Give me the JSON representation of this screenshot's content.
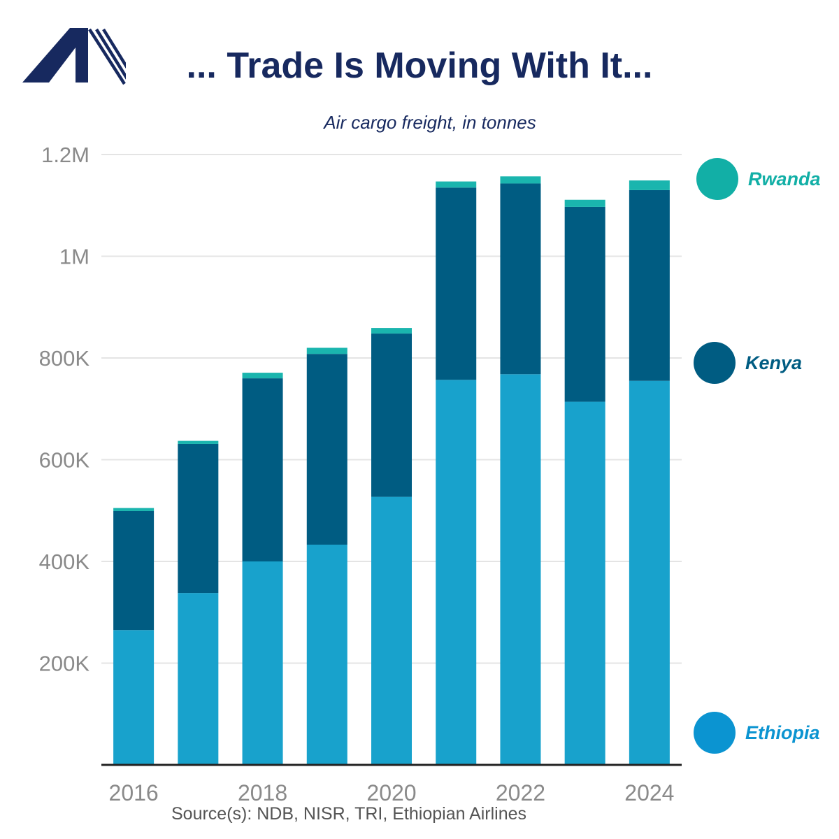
{
  "header": {
    "title": "... Trade Is Moving With It...",
    "subtitle": "Air cargo freight, in tonnes"
  },
  "colors": {
    "title": "#17295f",
    "logo": "#17295f",
    "ethiopia": "#18a2cc",
    "kenya": "#005c82",
    "rwanda": "#1ab5ae",
    "gridline": "#e4e4e4",
    "axis_text": "#8a8a8a"
  },
  "legend": [
    {
      "label": "Rwanda",
      "color": "#12afa6"
    },
    {
      "label": "Kenya",
      "color": "#005c82"
    },
    {
      "label": "Ethiopia",
      "color": "#0b94d1"
    }
  ],
  "source": "Source(s): NDB, NISR, TRI, Ethiopian Airlines",
  "chart_data": {
    "type": "bar",
    "stacked": true,
    "categories": [
      "2016",
      "2017",
      "2018",
      "2019",
      "2020",
      "2021",
      "2022",
      "2023",
      "2024"
    ],
    "x_tick_labels": [
      "2016",
      "",
      "2018",
      "",
      "2020",
      "",
      "2022",
      "",
      "2024"
    ],
    "y_tick_values": [
      200000,
      400000,
      600000,
      800000,
      1000000,
      1200000
    ],
    "y_tick_labels": [
      "200K",
      "400K",
      "600K",
      "800K",
      "1M",
      "1.2M"
    ],
    "ylim": [
      0,
      1200000
    ],
    "grid": true,
    "legend_position": "right",
    "series": [
      {
        "name": "Ethiopia",
        "values": [
          265000,
          338000,
          400000,
          433000,
          527000,
          757000,
          768000,
          714000,
          755000
        ]
      },
      {
        "name": "Kenya",
        "values": [
          234000,
          293000,
          360000,
          375000,
          321000,
          378000,
          375000,
          383000,
          375000
        ]
      },
      {
        "name": "Rwanda",
        "values": [
          6000,
          6000,
          11000,
          12000,
          11000,
          12000,
          14000,
          14000,
          19000
        ]
      }
    ]
  }
}
